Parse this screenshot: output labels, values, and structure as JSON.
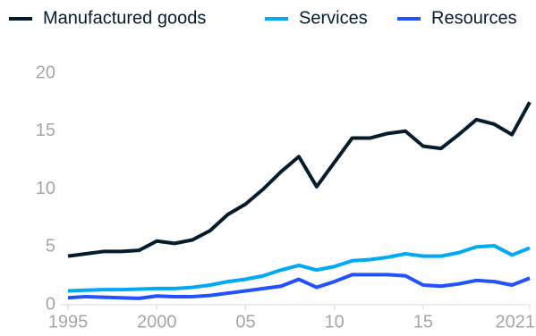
{
  "chart_data": {
    "type": "line",
    "x": [
      1995,
      1996,
      1997,
      1998,
      1999,
      2000,
      2001,
      2002,
      2003,
      2004,
      2005,
      2006,
      2007,
      2008,
      2009,
      2010,
      2011,
      2012,
      2013,
      2014,
      2015,
      2016,
      2017,
      2018,
      2019,
      2020,
      2021
    ],
    "series": [
      {
        "name": "Manufactured goods",
        "color": "#051c2c",
        "values": [
          4.2,
          4.4,
          4.6,
          4.6,
          4.7,
          5.5,
          5.3,
          5.6,
          6.4,
          7.8,
          8.7,
          10.0,
          11.5,
          12.8,
          10.2,
          12.3,
          14.4,
          14.4,
          14.8,
          15.0,
          13.7,
          13.5,
          14.7,
          16.0,
          15.6,
          14.7,
          17.5
        ]
      },
      {
        "name": "Services",
        "color": "#00a9f4",
        "values": [
          1.2,
          1.25,
          1.3,
          1.3,
          1.35,
          1.4,
          1.4,
          1.5,
          1.7,
          2.0,
          2.2,
          2.5,
          3.0,
          3.4,
          3.0,
          3.3,
          3.8,
          3.9,
          4.1,
          4.4,
          4.2,
          4.2,
          4.5,
          5.0,
          5.1,
          4.3,
          4.9
        ]
      },
      {
        "name": "Resources",
        "color": "#2251ff",
        "values": [
          0.6,
          0.7,
          0.65,
          0.6,
          0.55,
          0.75,
          0.7,
          0.7,
          0.8,
          1.0,
          1.2,
          1.4,
          1.6,
          2.2,
          1.5,
          2.0,
          2.6,
          2.6,
          2.6,
          2.5,
          1.7,
          1.6,
          1.8,
          2.1,
          2.0,
          1.7,
          2.3
        ]
      }
    ],
    "xlim": [
      1995,
      2021
    ],
    "xticks": [
      1995,
      2000,
      {
        "value": 2005,
        "label": "05"
      },
      {
        "value": 2010,
        "label": "10"
      },
      {
        "value": 2015,
        "label": "15"
      },
      2021
    ],
    "ylim": [
      0,
      20
    ],
    "yticks": [
      0,
      5,
      10,
      15,
      20
    ],
    "legend": "top"
  }
}
